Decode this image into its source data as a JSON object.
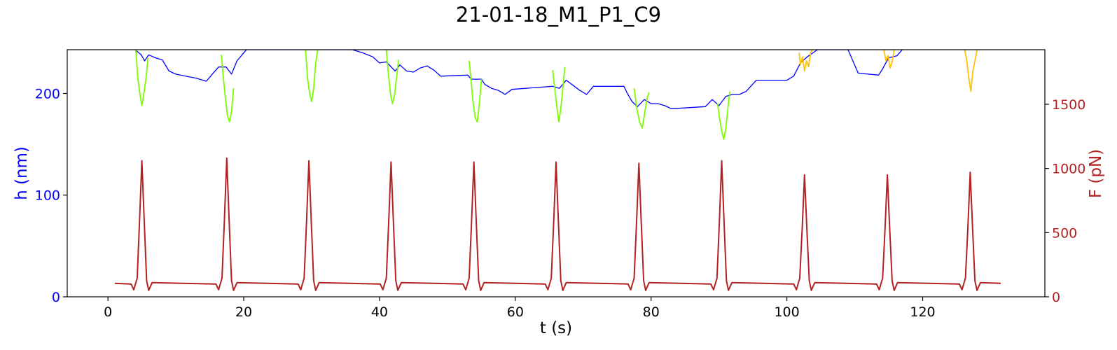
{
  "title": "21-01-18_M1_P1_C9",
  "chart_data": {
    "type": "line",
    "title": "21-01-18_M1_P1_C9",
    "xlabel": "t (s)",
    "ylabel_left": "h (nm)",
    "ylabel_right": "F (pN)",
    "xlim": [
      -6,
      138
    ],
    "ylim_left": [
      0,
      243
    ],
    "ylim_right": [
      0,
      1925
    ],
    "x_ticks": [
      0,
      20,
      40,
      60,
      80,
      100,
      120
    ],
    "y_left_ticks": [
      0,
      100,
      200
    ],
    "y_right_ticks": [
      0,
      500,
      1000,
      1500
    ],
    "grid": false,
    "colors": {
      "height": "#0000ff",
      "approach": "#7cfc00",
      "retract": "#ffc20a",
      "force": "#b22222",
      "left_axis": "#0000ff",
      "right_axis": "#b22222"
    },
    "series": [
      {
        "role": "height",
        "points": [
          [
            4.0,
            243
          ],
          [
            4.9,
            238
          ],
          [
            5.4,
            232
          ],
          [
            6.0,
            238
          ],
          [
            7.0,
            235
          ],
          [
            8.0,
            233
          ],
          [
            9.0,
            222
          ],
          [
            10.0,
            219
          ],
          [
            13.0,
            215
          ],
          [
            14.5,
            212
          ],
          [
            15.5,
            220
          ],
          [
            16.3,
            226
          ],
          [
            17.4,
            226
          ],
          [
            18.2,
            219
          ],
          [
            19.0,
            232
          ],
          [
            20.0,
            240
          ],
          [
            20.4,
            243
          ],
          [
            36.0,
            243
          ],
          [
            37.5,
            240
          ],
          [
            39.0,
            236
          ],
          [
            40.0,
            230
          ],
          [
            41.0,
            231
          ],
          [
            42.3,
            222
          ],
          [
            43.0,
            228
          ],
          [
            44.0,
            222
          ],
          [
            45.0,
            221
          ],
          [
            46.0,
            225
          ],
          [
            47.0,
            227
          ],
          [
            48.0,
            223
          ],
          [
            49.0,
            217
          ],
          [
            53.0,
            218
          ],
          [
            53.5,
            214
          ],
          [
            55.0,
            214
          ],
          [
            55.5,
            209
          ],
          [
            56.5,
            205
          ],
          [
            57.5,
            203
          ],
          [
            58.5,
            199
          ],
          [
            59.5,
            204
          ],
          [
            65.5,
            207
          ],
          [
            66.5,
            205
          ],
          [
            67.5,
            213
          ],
          [
            68.5,
            208
          ],
          [
            69.5,
            203
          ],
          [
            70.5,
            199
          ],
          [
            71.5,
            207
          ],
          [
            76.0,
            207
          ],
          [
            76.5,
            200
          ],
          [
            77.2,
            192
          ],
          [
            78.0,
            187
          ],
          [
            79.0,
            194
          ],
          [
            80.0,
            190
          ],
          [
            81.0,
            190
          ],
          [
            82.0,
            188
          ],
          [
            83.0,
            185
          ],
          [
            88.0,
            187
          ],
          [
            89.0,
            194
          ],
          [
            90.0,
            188
          ],
          [
            91.0,
            197
          ],
          [
            92.0,
            199
          ],
          [
            93.0,
            199
          ],
          [
            94.0,
            202
          ],
          [
            95.5,
            213
          ],
          [
            100.0,
            213
          ],
          [
            101.0,
            217
          ],
          [
            102.0,
            230
          ],
          [
            103.0,
            236
          ],
          [
            104.5,
            243
          ],
          [
            109.0,
            243
          ],
          [
            110.5,
            220
          ],
          [
            113.5,
            218
          ],
          [
            114.0,
            223
          ],
          [
            115.0,
            235
          ],
          [
            116.2,
            237
          ],
          [
            117.0,
            243
          ]
        ]
      },
      {
        "role": "approach",
        "segments": [
          [
            [
              4.1,
              243
            ],
            [
              4.4,
              215
            ],
            [
              4.7,
              200
            ],
            [
              5.0,
              188
            ],
            [
              5.3,
              200
            ],
            [
              5.6,
              215
            ],
            [
              5.9,
              235
            ]
          ],
          [
            [
              16.7,
              238
            ],
            [
              17.0,
              215
            ],
            [
              17.3,
              195
            ],
            [
              17.6,
              178
            ],
            [
              17.9,
              172
            ],
            [
              18.2,
              182
            ],
            [
              18.5,
              205
            ]
          ],
          [
            [
              29.1,
              243
            ],
            [
              29.4,
              215
            ],
            [
              29.7,
              200
            ],
            [
              30.0,
              192
            ],
            [
              30.3,
              205
            ],
            [
              30.6,
              230
            ],
            [
              30.9,
              243
            ]
          ],
          [
            [
              41.0,
              243
            ],
            [
              41.3,
              220
            ],
            [
              41.6,
              200
            ],
            [
              41.9,
              190
            ],
            [
              42.2,
              198
            ],
            [
              42.5,
              215
            ],
            [
              42.8,
              233
            ]
          ],
          [
            [
              53.2,
              232
            ],
            [
              53.5,
              212
            ],
            [
              53.8,
              190
            ],
            [
              54.1,
              176
            ],
            [
              54.4,
              172
            ],
            [
              54.7,
              190
            ],
            [
              55.0,
              214
            ]
          ],
          [
            [
              65.5,
              223
            ],
            [
              65.8,
              205
            ],
            [
              66.1,
              188
            ],
            [
              66.4,
              172
            ],
            [
              66.7,
              185
            ],
            [
              67.0,
              205
            ],
            [
              67.3,
              226
            ]
          ],
          [
            [
              77.5,
              205
            ],
            [
              77.9,
              185
            ],
            [
              78.3,
              172
            ],
            [
              78.7,
              166
            ],
            [
              79.0,
              178
            ],
            [
              79.4,
              195
            ],
            [
              79.7,
              201
            ]
          ],
          [
            [
              89.8,
              190
            ],
            [
              90.1,
              175
            ],
            [
              90.4,
              163
            ],
            [
              90.7,
              155
            ],
            [
              91.0,
              165
            ],
            [
              91.3,
              185
            ],
            [
              91.6,
              202
            ]
          ]
        ]
      },
      {
        "role": "retract",
        "segments": [
          [
            [
              101.8,
              240
            ],
            [
              102.0,
              228
            ],
            [
              102.3,
              236
            ],
            [
              102.6,
              222
            ],
            [
              102.9,
              232
            ],
            [
              103.2,
              226
            ],
            [
              103.5,
              240
            ],
            [
              103.8,
              243
            ]
          ],
          [
            [
              114.3,
              243
            ],
            [
              114.6,
              232
            ],
            [
              114.9,
              237
            ],
            [
              115.2,
              225
            ],
            [
              115.5,
              231
            ],
            [
              115.8,
              243
            ]
          ],
          [
            [
              126.2,
              243
            ],
            [
              126.5,
              232
            ],
            [
              126.8,
              215
            ],
            [
              127.1,
              202
            ],
            [
              127.4,
              222
            ],
            [
              127.7,
              232
            ],
            [
              128.0,
              243
            ]
          ]
        ]
      },
      {
        "role": "force",
        "baseline": 105,
        "x_start": 1.0,
        "x_end": 131.5,
        "peaks": [
          [
            5.0,
            1060
          ],
          [
            17.5,
            1080
          ],
          [
            29.6,
            1060
          ],
          [
            41.7,
            1050
          ],
          [
            53.9,
            1050
          ],
          [
            66.0,
            1050
          ],
          [
            78.2,
            1040
          ],
          [
            90.4,
            1060
          ],
          [
            102.6,
            950
          ],
          [
            114.8,
            950
          ],
          [
            127.0,
            970
          ]
        ]
      }
    ]
  }
}
